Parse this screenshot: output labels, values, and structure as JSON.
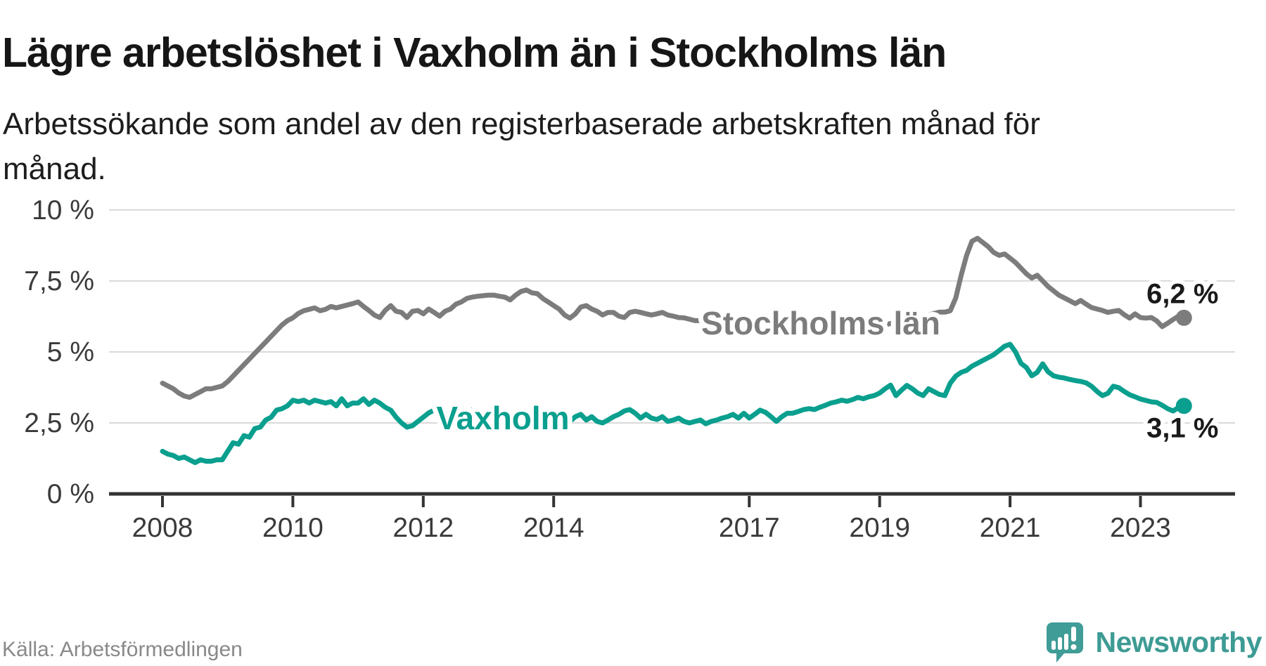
{
  "header": {
    "title": "Lägre arbetslöshet i Vaxholm än i Stockholms län",
    "subtitle": "Arbetssökande som andel av den registerbaserade arbetskraften månad för månad."
  },
  "footer": {
    "source": "Källa: Arbetsförmedlingen",
    "brand": "Newsworthy",
    "logo_icon": "bar-chart-speech-bubble-icon"
  },
  "colors": {
    "vaxholm_line": "#0a9f8e",
    "stockholm_line": "#7c7c7c",
    "grid": "#d9d9d9",
    "axis": "#333333",
    "brand_teal": "#3f9c96",
    "end_label_text": "#1a1a1a"
  },
  "chart_data": {
    "type": "line",
    "x_unit": "month",
    "start": "2008-01",
    "end": "2023-09",
    "ylim": [
      0,
      10
    ],
    "grid": "horizontal",
    "legend_position": "inline-labels",
    "y_ticks": [
      {
        "label": "10 %",
        "value": 10
      },
      {
        "label": "7,5 %",
        "value": 7.5
      },
      {
        "label": "5 %",
        "value": 5
      },
      {
        "label": "2,5 %",
        "value": 2.5
      },
      {
        "label": "0 %",
        "value": 0
      }
    ],
    "x_ticks": [
      2008,
      2010,
      2012,
      2014,
      2017,
      2019,
      2021,
      2023
    ],
    "series": [
      {
        "name": "Stockholms län",
        "color": "#7c7c7c",
        "end_label": "6,2 %",
        "values": [
          3.9,
          3.8,
          3.7,
          3.55,
          3.45,
          3.4,
          3.5,
          3.6,
          3.7,
          3.7,
          3.75,
          3.8,
          3.95,
          4.15,
          4.35,
          4.55,
          4.75,
          4.95,
          5.15,
          5.35,
          5.55,
          5.75,
          5.95,
          6.1,
          6.2,
          6.35,
          6.45,
          6.5,
          6.55,
          6.45,
          6.5,
          6.6,
          6.55,
          6.6,
          6.65,
          6.7,
          6.76,
          6.6,
          6.46,
          6.3,
          6.21,
          6.46,
          6.63,
          6.43,
          6.39,
          6.21,
          6.43,
          6.46,
          6.34,
          6.51,
          6.39,
          6.26,
          6.43,
          6.51,
          6.68,
          6.76,
          6.88,
          6.93,
          6.96,
          6.98,
          7.0,
          7.0,
          6.96,
          6.93,
          6.83,
          7.0,
          7.13,
          7.18,
          7.08,
          7.05,
          6.88,
          6.76,
          6.63,
          6.51,
          6.3,
          6.19,
          6.34,
          6.58,
          6.63,
          6.51,
          6.43,
          6.3,
          6.39,
          6.39,
          6.26,
          6.21,
          6.39,
          6.43,
          6.39,
          6.34,
          6.3,
          6.34,
          6.39,
          6.3,
          6.26,
          6.21,
          6.2,
          6.15,
          6.1,
          6.1,
          6.05,
          6.1,
          6.15,
          6.1,
          6.05,
          6.0,
          6.0,
          6.05,
          6.05,
          6.0,
          5.95,
          5.9,
          5.95,
          6.0,
          6.05,
          6.0,
          5.95,
          5.9,
          5.9,
          5.95,
          5.95,
          5.9,
          5.85,
          5.8,
          5.8,
          5.85,
          5.9,
          5.85,
          5.8,
          5.8,
          5.85,
          5.9,
          5.9,
          5.95,
          6.0,
          6.05,
          6.1,
          6.15,
          6.2,
          6.2,
          6.25,
          6.3,
          6.35,
          6.4,
          6.4,
          6.45,
          6.9,
          7.7,
          8.4,
          8.9,
          9.0,
          8.85,
          8.7,
          8.5,
          8.4,
          8.45,
          8.3,
          8.15,
          7.95,
          7.75,
          7.6,
          7.7,
          7.5,
          7.3,
          7.15,
          7.0,
          6.9,
          6.8,
          6.7,
          6.81,
          6.68,
          6.56,
          6.51,
          6.46,
          6.39,
          6.43,
          6.46,
          6.31,
          6.19,
          6.34,
          6.21,
          6.19,
          6.21,
          6.09,
          5.89,
          6.01,
          6.14,
          6.26,
          6.2
        ]
      },
      {
        "name": "Vaxholm",
        "color": "#0a9f8e",
        "end_label": "3,1 %",
        "values": [
          1.5,
          1.4,
          1.35,
          1.25,
          1.3,
          1.2,
          1.1,
          1.2,
          1.15,
          1.15,
          1.2,
          1.2,
          1.5,
          1.8,
          1.75,
          2.05,
          2.0,
          2.3,
          2.35,
          2.6,
          2.7,
          2.95,
          3.0,
          3.1,
          3.3,
          3.25,
          3.3,
          3.2,
          3.3,
          3.25,
          3.2,
          3.25,
          3.1,
          3.35,
          3.1,
          3.2,
          3.2,
          3.35,
          3.15,
          3.3,
          3.2,
          3.05,
          2.95,
          2.7,
          2.5,
          2.35,
          2.4,
          2.55,
          2.7,
          2.85,
          2.95,
          2.9,
          2.95,
          2.9,
          2.95,
          3.0,
          2.9,
          2.95,
          2.9,
          2.85,
          2.9,
          2.95,
          2.9,
          2.85,
          2.8,
          2.75,
          2.7,
          2.6,
          2.55,
          2.5,
          2.45,
          2.4,
          2.35,
          2.3,
          2.45,
          2.55,
          2.72,
          2.8,
          2.6,
          2.72,
          2.55,
          2.5,
          2.6,
          2.72,
          2.8,
          2.92,
          2.97,
          2.84,
          2.67,
          2.8,
          2.67,
          2.62,
          2.72,
          2.55,
          2.6,
          2.67,
          2.55,
          2.5,
          2.55,
          2.6,
          2.47,
          2.55,
          2.6,
          2.67,
          2.72,
          2.8,
          2.67,
          2.84,
          2.67,
          2.8,
          2.95,
          2.87,
          2.72,
          2.55,
          2.72,
          2.84,
          2.84,
          2.9,
          2.97,
          3.0,
          2.97,
          3.05,
          3.12,
          3.2,
          3.24,
          3.3,
          3.26,
          3.32,
          3.4,
          3.35,
          3.42,
          3.46,
          3.55,
          3.7,
          3.83,
          3.46,
          3.65,
          3.82,
          3.7,
          3.55,
          3.46,
          3.7,
          3.6,
          3.5,
          3.46,
          3.9,
          4.15,
          4.28,
          4.35,
          4.5,
          4.6,
          4.7,
          4.8,
          4.9,
          5.05,
          5.2,
          5.27,
          5.0,
          4.6,
          4.45,
          4.16,
          4.28,
          4.58,
          4.3,
          4.16,
          4.11,
          4.08,
          4.03,
          3.99,
          3.96,
          3.91,
          3.79,
          3.61,
          3.46,
          3.54,
          3.79,
          3.74,
          3.61,
          3.49,
          3.42,
          3.34,
          3.29,
          3.24,
          3.22,
          3.12,
          3.0,
          2.92,
          3.04,
          3.1
        ]
      }
    ]
  }
}
